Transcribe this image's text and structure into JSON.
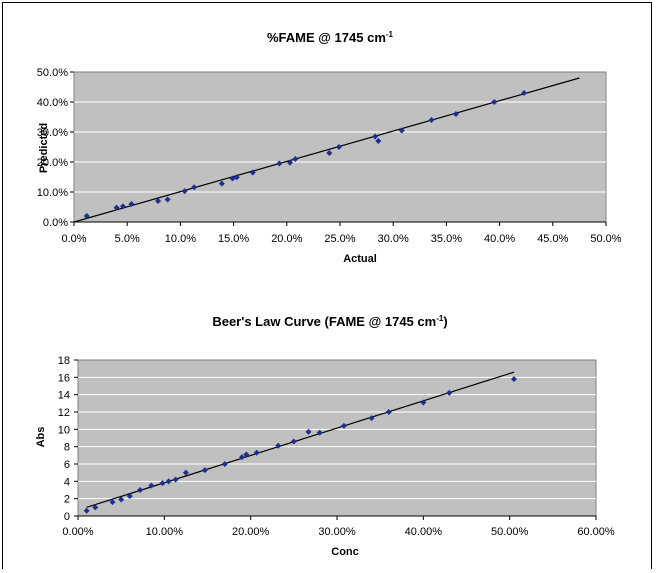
{
  "chart_data": [
    {
      "type": "scatter",
      "title_main": "%FAME @ 1745 cm",
      "title_sup": "-1",
      "xlabel": "Actual",
      "ylabel": "Predicted",
      "xlim": [
        0,
        50
      ],
      "ylim": [
        0,
        50
      ],
      "x_ticks": [
        "0.0%",
        "5.0%",
        "10.0%",
        "15.0%",
        "20.0%",
        "25.0%",
        "30.0%",
        "35.0%",
        "40.0%",
        "45.0%",
        "50.0%"
      ],
      "y_ticks": [
        "0.0%",
        "10.0%",
        "20.0%",
        "30.0%",
        "40.0%",
        "50.0%"
      ],
      "grid": "horizontal",
      "plot_background": "#c0c0c0",
      "marker_color": "#1f2f8f",
      "trendline": {
        "x": [
          0,
          47.5
        ],
        "y": [
          0,
          48
        ]
      },
      "series": [
        {
          "x": [
            1.2,
            4.0,
            4.6,
            5.4,
            7.9,
            8.8,
            10.4,
            11.3,
            13.9,
            14.9,
            15.3,
            16.8,
            19.3,
            20.3,
            20.8,
            24.0,
            24.9,
            28.3,
            28.6,
            30.8,
            33.6,
            35.9,
            39.5,
            42.3
          ],
          "y": [
            2.0,
            4.8,
            5.2,
            6.0,
            7.0,
            7.5,
            10.3,
            11.6,
            12.8,
            14.5,
            14.9,
            16.5,
            19.5,
            19.8,
            21.0,
            23.0,
            25.0,
            28.5,
            27.0,
            30.5,
            34.0,
            36.0,
            40.0,
            43.0
          ]
        }
      ]
    },
    {
      "type": "scatter",
      "title_main": "Beer's Law Curve (FAME @ 1745 cm",
      "title_sup": "-1",
      "title_end": ")",
      "xlabel": "Conc",
      "ylabel": "Abs",
      "xlim": [
        0,
        60
      ],
      "ylim": [
        0,
        18
      ],
      "x_ticks": [
        "0.00%",
        "10.00%",
        "20.00%",
        "30.00%",
        "40.00%",
        "50.00%",
        "60.00%"
      ],
      "y_ticks": [
        "0",
        "2",
        "4",
        "6",
        "8",
        "10",
        "12",
        "14",
        "16",
        "18"
      ],
      "grid": "horizontal",
      "plot_background": "#c0c0c0",
      "marker_color": "#1f2f8f",
      "trendline": {
        "x": [
          1.0,
          50.5
        ],
        "y": [
          1.0,
          16.6
        ]
      },
      "series": [
        {
          "x": [
            1.0,
            2.0,
            4.0,
            5.0,
            6.0,
            7.2,
            8.5,
            9.8,
            10.5,
            11.3,
            12.5,
            14.7,
            17.0,
            19.0,
            19.5,
            20.7,
            23.2,
            25.0,
            26.7,
            28.0,
            30.8,
            34.0,
            36.0,
            40.0,
            43.0,
            50.5
          ],
          "y": [
            0.6,
            1.0,
            1.6,
            1.9,
            2.3,
            3.0,
            3.5,
            3.8,
            4.0,
            4.2,
            5.0,
            5.3,
            6.0,
            6.8,
            7.1,
            7.3,
            8.1,
            8.6,
            9.7,
            9.6,
            10.4,
            11.3,
            12.0,
            13.1,
            14.2,
            15.8
          ]
        }
      ]
    }
  ]
}
